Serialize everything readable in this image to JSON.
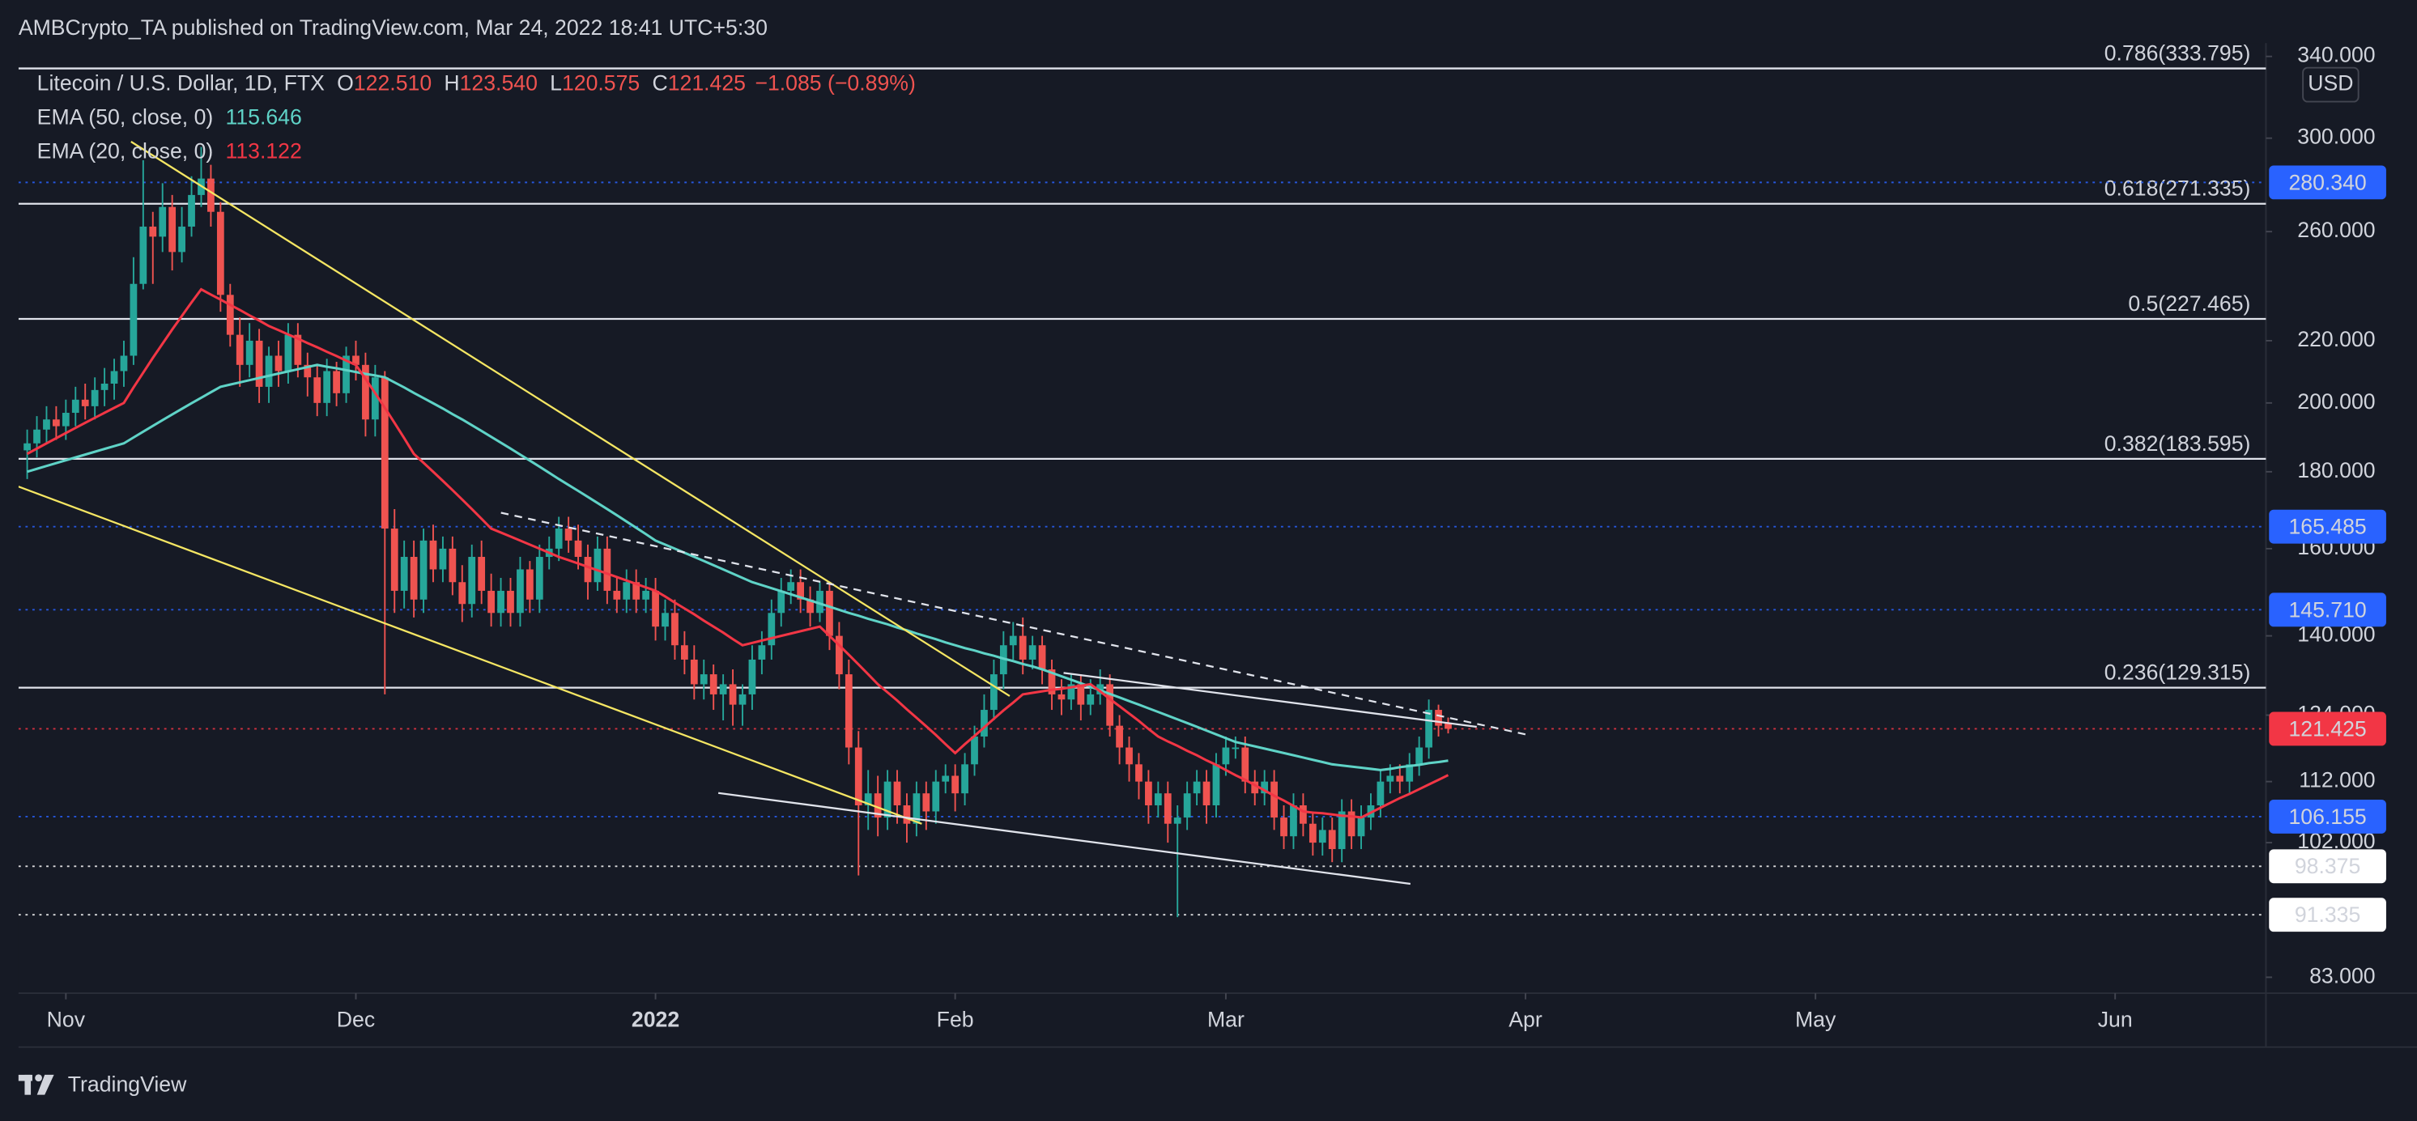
{
  "header": "AMBCrypto_TA published on TradingView.com, Mar 24, 2022 18:41 UTC+5:30",
  "footer": "TradingView",
  "chart_data": {
    "type": "candlestick",
    "title": "Litecoin / U.S. Dollar, 1D, FTX",
    "ohlc_legend": [
      {
        "key": "O",
        "text": "122.510"
      },
      {
        "key": "H",
        "text": "123.540"
      },
      {
        "key": "L",
        "text": "120.575"
      },
      {
        "key": "C",
        "text": "121.425"
      }
    ],
    "change": "−1.085 (−0.89%)",
    "xlim": [
      -0.9,
      231.6
    ],
    "xticks": [
      {
        "value": 4,
        "label": "Nov"
      },
      {
        "value": 34,
        "label": "Dec"
      },
      {
        "value": 65,
        "label": "2022"
      },
      {
        "value": 96,
        "label": "Feb"
      },
      {
        "value": 124,
        "label": "Mar"
      },
      {
        "value": 155,
        "label": "Apr"
      },
      {
        "value": 185,
        "label": "May"
      },
      {
        "value": 216,
        "label": "Jun"
      }
    ],
    "up_color": "#26a69a",
    "down_color": "#ef5350",
    "open": [
      186,
      188,
      192,
      195,
      193,
      197,
      201,
      199,
      204,
      206,
      210,
      215,
      240,
      262,
      258,
      270,
      252,
      262,
      275,
      282,
      268,
      236,
      222,
      212,
      220,
      205,
      215,
      210,
      222,
      212,
      208,
      200,
      210,
      203,
      215,
      212,
      195,
      208,
      165,
      150,
      158,
      148,
      162,
      155,
      160,
      152,
      147,
      158,
      150,
      145,
      150,
      145,
      155,
      148,
      158,
      160,
      165,
      162,
      158,
      152,
      160,
      150,
      148,
      152,
      148,
      150,
      142,
      145,
      138,
      135,
      130,
      132,
      128,
      130,
      126,
      128,
      135,
      138,
      145,
      150,
      152,
      148,
      145,
      150,
      140,
      132,
      118,
      108,
      110,
      106,
      112,
      108,
      105,
      110,
      107,
      112,
      113,
      110,
      115,
      120,
      125,
      132,
      138,
      140,
      135,
      138,
      133,
      128,
      127,
      130,
      126,
      128,
      130,
      122,
      118,
      115,
      112,
      108,
      110,
      105,
      106,
      110,
      112,
      108,
      115,
      118,
      118,
      112,
      110,
      112,
      106,
      103,
      108,
      105,
      102,
      104,
      101,
      107,
      103,
      106,
      108,
      112,
      113,
      112,
      115,
      118,
      125,
      122.51
    ],
    "high": [
      192,
      196,
      199,
      199,
      201,
      205,
      206,
      208,
      211,
      214,
      220,
      250,
      290,
      268,
      280,
      275,
      270,
      283,
      296,
      288,
      272,
      240,
      228,
      226,
      224,
      218,
      220,
      226,
      226,
      216,
      212,
      214,
      213,
      218,
      220,
      216,
      212,
      210,
      170,
      162,
      162,
      165,
      166,
      163,
      163,
      156,
      161,
      162,
      154,
      153,
      153,
      158,
      157,
      161,
      163,
      168,
      168,
      166,
      161,
      163,
      163,
      153,
      155,
      155,
      153,
      153,
      148,
      148,
      141,
      138,
      135,
      134,
      132,
      133,
      130,
      138,
      141,
      148,
      153,
      155,
      155,
      151,
      152,
      152,
      143,
      135,
      121,
      114,
      113,
      114,
      114,
      110,
      112,
      112,
      114,
      115,
      115,
      117,
      122,
      128,
      135,
      141,
      143,
      144,
      140,
      140,
      135,
      131,
      132,
      132,
      131,
      133,
      132,
      124,
      120,
      117,
      114,
      112,
      112,
      108,
      112,
      114,
      114,
      117,
      120,
      120,
      120,
      114,
      114,
      114,
      108,
      110,
      110,
      107,
      106,
      106,
      109,
      109,
      108,
      110,
      114,
      115,
      115,
      117,
      120,
      127,
      126,
      123.54
    ],
    "low": [
      178,
      184,
      188,
      189,
      189,
      193,
      195,
      195,
      199,
      201,
      205,
      212,
      238,
      240,
      252,
      245,
      248,
      258,
      270,
      262,
      230,
      218,
      205,
      208,
      200,
      200,
      205,
      206,
      208,
      202,
      196,
      196,
      199,
      200,
      207,
      190,
      190,
      128,
      145,
      146,
      144,
      145,
      152,
      152,
      149,
      143,
      144,
      147,
      142,
      142,
      142,
      142,
      145,
      145,
      155,
      157,
      159,
      155,
      148,
      150,
      147,
      145,
      145,
      145,
      145,
      139,
      139,
      135,
      132,
      127,
      127,
      125,
      123,
      122,
      122,
      125,
      132,
      135,
      142,
      147,
      145,
      142,
      143,
      137,
      129,
      115,
      97,
      104,
      103,
      104,
      105,
      102,
      103,
      104,
      105,
      110,
      107,
      108,
      113,
      118,
      123,
      129,
      135,
      132,
      133,
      130,
      125,
      124,
      125,
      123,
      124,
      126,
      120,
      115,
      112,
      109,
      105,
      106,
      102,
      91,
      104,
      108,
      105,
      106,
      113,
      116,
      110,
      108,
      108,
      104,
      101,
      101,
      103,
      100,
      100,
      99,
      99,
      101,
      101,
      104,
      106,
      110,
      110,
      110,
      113,
      116,
      120,
      120.575
    ],
    "close": [
      188,
      192,
      195,
      193,
      197,
      201,
      199,
      204,
      206,
      210,
      215,
      240,
      262,
      258,
      270,
      252,
      262,
      275,
      282,
      268,
      236,
      222,
      212,
      220,
      205,
      215,
      210,
      222,
      212,
      208,
      200,
      210,
      203,
      215,
      212,
      195,
      208,
      165,
      150,
      158,
      148,
      162,
      155,
      160,
      152,
      147,
      158,
      150,
      145,
      150,
      145,
      155,
      148,
      158,
      160,
      165,
      162,
      158,
      152,
      160,
      150,
      148,
      152,
      148,
      150,
      142,
      145,
      138,
      135,
      130,
      132,
      128,
      130,
      126,
      128,
      135,
      138,
      145,
      150,
      152,
      148,
      145,
      150,
      140,
      132,
      118,
      108,
      110,
      106,
      112,
      108,
      105,
      110,
      107,
      112,
      113,
      110,
      115,
      120,
      125,
      132,
      138,
      140,
      135,
      138,
      133,
      128,
      127,
      130,
      126,
      128,
      130,
      122,
      118,
      115,
      112,
      108,
      110,
      105,
      106,
      110,
      112,
      108,
      115,
      118,
      118,
      112,
      110,
      112,
      106,
      103,
      108,
      105,
      102,
      104,
      101,
      107,
      103,
      106,
      108,
      112,
      113,
      112,
      115,
      118,
      125,
      122,
      121.425
    ],
    "series": [
      {
        "name": "EMA (50, close, 0)",
        "color": "#5fd3c7",
        "last_label": "115.646",
        "values": [
          180,
          180.8,
          181.6,
          182.4,
          183.2,
          184,
          184.8,
          185.6,
          186.4,
          187.2,
          188,
          189.7,
          191.4,
          193.1,
          194.8,
          196.5,
          198.2,
          199.9,
          201.6,
          203.3,
          205,
          205.7,
          206.4,
          207.1,
          207.8,
          208.5,
          209.2,
          209.9,
          210.6,
          211.3,
          212,
          211.4,
          210.9,
          210.3,
          209.7,
          209.1,
          208.6,
          208,
          206.4,
          204.8,
          203.1,
          201.5,
          199.9,
          198.3,
          196.6,
          195,
          193.3,
          191.6,
          189.9,
          188.2,
          186.5,
          184.8,
          183.1,
          181.4,
          179.7,
          178,
          176.4,
          174.8,
          173.2,
          171.6,
          170,
          168.4,
          166.8,
          165.2,
          163.6,
          162,
          161,
          160,
          159,
          158,
          157,
          156,
          155,
          154,
          153,
          152,
          151.3,
          150.6,
          149.9,
          149.2,
          148.5,
          147.8,
          147.1,
          146.4,
          145.7,
          145,
          144.4,
          143.7,
          143.1,
          142.5,
          141.8,
          141.2,
          140.5,
          139.9,
          139.3,
          138.6,
          138,
          137.4,
          136.9,
          136.3,
          135.8,
          135.2,
          134.7,
          134.1,
          133.6,
          133,
          132.3,
          131.6,
          130.9,
          130.2,
          129.5,
          128.8,
          128.1,
          127.4,
          126.7,
          126,
          125.3,
          124.6,
          123.9,
          123.2,
          122.5,
          121.8,
          121.1,
          120.4,
          119.7,
          119,
          118.6,
          118.2,
          117.8,
          117.4,
          117,
          116.6,
          116.2,
          115.8,
          115.4,
          115,
          114.8,
          114.6,
          114.4,
          114.2,
          114,
          114.2,
          114.5,
          114.7,
          114.9,
          115.2,
          115.4,
          115.646
        ]
      },
      {
        "name": "EMA (20, close, 0)",
        "color": "#f23645",
        "last_label": "113.122",
        "values": [
          185,
          186.5,
          188,
          189.5,
          191,
          192.5,
          194,
          195.5,
          197,
          198.5,
          200,
          204.8,
          209.5,
          214.3,
          219,
          223.8,
          228.5,
          233.3,
          238,
          236.1,
          234.3,
          232.4,
          230.6,
          228.7,
          226.9,
          225,
          223.6,
          222.1,
          220.7,
          219.2,
          217.8,
          216.3,
          214.9,
          213.4,
          212,
          207.5,
          203,
          198.5,
          194,
          189.5,
          185,
          182.5,
          180,
          177.5,
          175,
          172.5,
          170,
          167.5,
          165,
          164,
          163,
          162,
          161,
          160,
          159,
          158,
          157.2,
          156.4,
          155.6,
          154.8,
          154,
          153.2,
          152.4,
          151.6,
          150.8,
          150,
          148.7,
          147.3,
          146,
          144.7,
          143.3,
          142,
          140.7,
          139.3,
          138,
          138.5,
          139,
          139.5,
          140,
          140.5,
          141,
          141.5,
          142,
          140,
          138,
          136,
          134,
          132,
          130,
          128.4,
          126.8,
          125.1,
          123.5,
          121.9,
          120.3,
          118.6,
          117,
          118.6,
          120.1,
          121.7,
          123.3,
          124.9,
          126.4,
          128,
          128.3,
          128.6,
          128.9,
          129.1,
          129.4,
          129.7,
          130,
          128.6,
          127.1,
          125.7,
          124.3,
          122.9,
          121.4,
          120,
          119.1,
          118.3,
          117.4,
          116.6,
          115.7,
          114.9,
          114,
          113.1,
          112.3,
          111.4,
          110.5,
          109.6,
          108.8,
          107.9,
          107,
          106.8,
          106.7,
          106.5,
          106.3,
          106.2,
          106,
          106.8,
          107.6,
          108.4,
          109.2,
          109.9,
          110.7,
          111.5,
          112.3,
          113.122
        ]
      }
    ],
    "ylim": [
      81,
      347
    ],
    "log_scale": true,
    "y_unit": "USD",
    "yticks": [
      {
        "value": 340,
        "label": "340.000"
      },
      {
        "value": 300,
        "label": "300.000"
      },
      {
        "value": 260,
        "label": "260.000"
      },
      {
        "value": 220,
        "label": "220.000"
      },
      {
        "value": 200,
        "label": "200.000"
      },
      {
        "value": 180,
        "label": "180.000"
      },
      {
        "value": 160,
        "label": "160.000"
      },
      {
        "value": 140,
        "label": "140.000"
      },
      {
        "value": 124,
        "label": "124.000"
      },
      {
        "value": 112,
        "label": "112.000"
      },
      {
        "value": 102,
        "label": "102.000"
      },
      {
        "value": 83,
        "label": "83.000"
      }
    ],
    "fib_levels": [
      {
        "value": 333.795,
        "label": "0.786(333.795)"
      },
      {
        "value": 271.335,
        "label": "0.618(271.335)"
      },
      {
        "value": 227.465,
        "label": "0.5(227.465)"
      },
      {
        "value": 183.595,
        "label": "0.382(183.595)"
      },
      {
        "value": 129.315,
        "label": "0.236(129.315)"
      }
    ],
    "price_levels": [
      {
        "value": 280.34,
        "label": "280.340",
        "color": "#2962ff"
      },
      {
        "value": 165.485,
        "label": "165.485",
        "color": "#2962ff"
      },
      {
        "value": 145.71,
        "label": "145.710",
        "color": "#2962ff"
      },
      {
        "value": 121.425,
        "label": "121.425",
        "color": "#f23645"
      },
      {
        "value": 106.155,
        "label": "106.155",
        "color": "#2962ff"
      },
      {
        "value": 98.375,
        "label": "98.375",
        "color": "#ffffff"
      },
      {
        "value": 91.335,
        "label": "91.335",
        "color": "#ffffff"
      }
    ]
  }
}
